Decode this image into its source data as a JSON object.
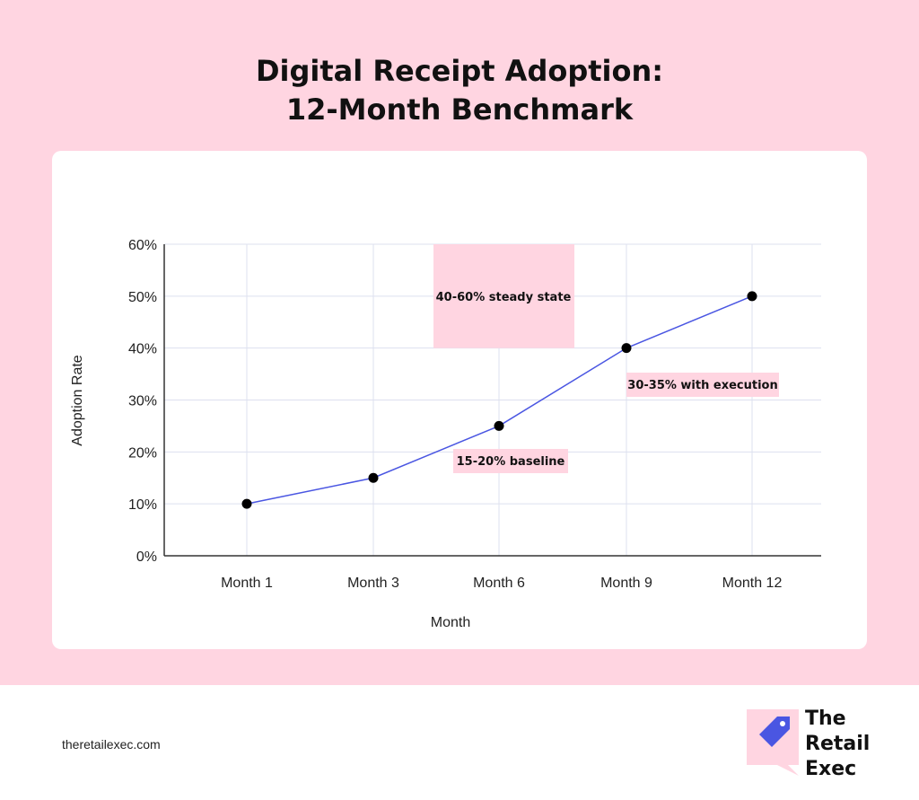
{
  "title": {
    "line1": "Digital Receipt Adoption:",
    "line2": "12-Month Benchmark"
  },
  "chart_data": {
    "type": "line",
    "categories": [
      "Month 1",
      "Month 3",
      "Month 6",
      "Month 9",
      "Month 12"
    ],
    "values": [
      10,
      15,
      25,
      40,
      50
    ],
    "xlabel": "Month",
    "ylabel": "Adoption Rate",
    "ylim": [
      0,
      60
    ],
    "yticks": [
      "0%",
      "10%",
      "20%",
      "30%",
      "40%",
      "50%",
      "60%"
    ],
    "grid": true,
    "line_color": "#4a56e2",
    "marker_color": "#000000",
    "annotations": [
      {
        "text": "40-60% steady state",
        "region": {
          "x_from": "Month 6 (left)",
          "y_from": 40,
          "y_to": 60
        }
      },
      {
        "text": "30-35% with execution"
      },
      {
        "text": "15-20% baseline"
      }
    ]
  },
  "footer": {
    "url": "theretailexec.com"
  },
  "brand": {
    "line1": "The",
    "line2": "Retail",
    "line3": "Exec",
    "accent": "#4a56e2",
    "pink": "#ffd5e1"
  }
}
